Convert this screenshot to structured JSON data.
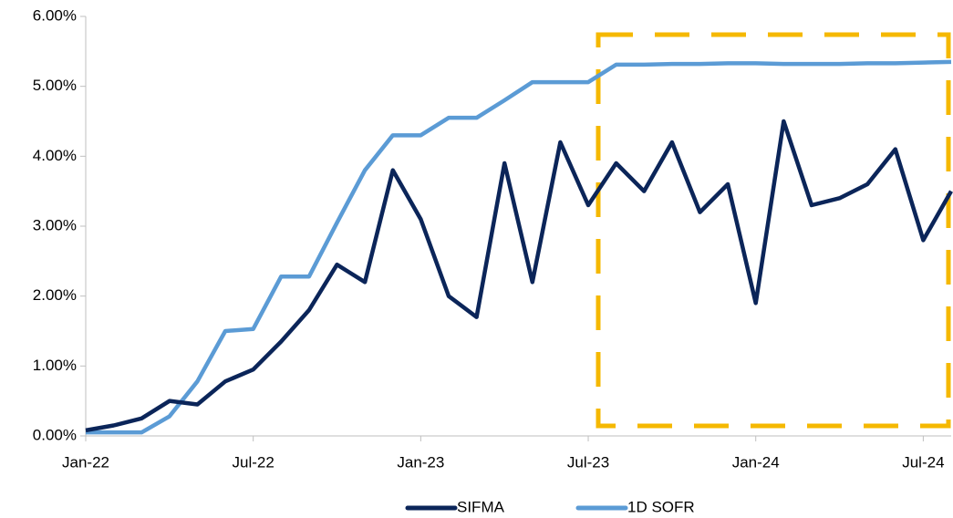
{
  "chart_data": {
    "type": "line",
    "x": [
      "2022-01",
      "2022-02",
      "2022-03",
      "2022-04",
      "2022-05",
      "2022-06",
      "2022-07",
      "2022-08",
      "2022-09",
      "2022-10",
      "2022-11",
      "2022-12",
      "2023-01",
      "2023-02",
      "2023-03",
      "2023-04",
      "2023-05",
      "2023-06",
      "2023-07",
      "2023-08",
      "2023-09",
      "2023-10",
      "2023-11",
      "2023-12",
      "2024-01",
      "2024-02",
      "2024-03",
      "2024-04",
      "2024-05",
      "2024-06",
      "2024-07",
      "2024-08"
    ],
    "series": [
      {
        "name": "SIFMA",
        "color": "#0b2559",
        "values": [
          0.08,
          0.15,
          0.25,
          0.5,
          0.45,
          0.78,
          0.95,
          1.35,
          1.8,
          2.45,
          2.2,
          3.8,
          3.1,
          2.0,
          1.7,
          3.9,
          2.2,
          4.2,
          3.3,
          3.9,
          3.5,
          4.2,
          3.2,
          3.6,
          1.9,
          4.5,
          3.3,
          3.4,
          3.6,
          4.1,
          2.8,
          3.5
        ]
      },
      {
        "name": "1D SOFR",
        "color": "#5b9bd5",
        "values": [
          0.05,
          0.05,
          0.05,
          0.28,
          0.78,
          1.5,
          1.53,
          2.28,
          2.28,
          3.05,
          3.8,
          4.3,
          4.3,
          4.55,
          4.55,
          4.8,
          5.06,
          5.06,
          5.06,
          5.31,
          5.31,
          5.32,
          5.32,
          5.33,
          5.33,
          5.32,
          5.32,
          5.32,
          5.33,
          5.33,
          5.34,
          5.35
        ]
      }
    ],
    "xlim": [
      "2022-01",
      "2024-08"
    ],
    "xticks": [
      {
        "value": "2022-01",
        "label": "Jan-22"
      },
      {
        "value": "2022-07",
        "label": "Jul-22"
      },
      {
        "value": "2023-01",
        "label": "Jan-23"
      },
      {
        "value": "2023-07",
        "label": "Jul-23"
      },
      {
        "value": "2024-01",
        "label": "Jan-24"
      },
      {
        "value": "2024-07",
        "label": "Jul-24"
      }
    ],
    "ylim": [
      0,
      6
    ],
    "yticks": [
      {
        "value": 0,
        "label": "0.00%"
      },
      {
        "value": 1,
        "label": "1.00%"
      },
      {
        "value": 2,
        "label": "2.00%"
      },
      {
        "value": 3,
        "label": "3.00%"
      },
      {
        "value": 4,
        "label": "4.00%"
      },
      {
        "value": 5,
        "label": "5.00%"
      },
      {
        "value": 6,
        "label": "6.00%"
      }
    ],
    "grid": false,
    "legend": "bottom"
  }
}
